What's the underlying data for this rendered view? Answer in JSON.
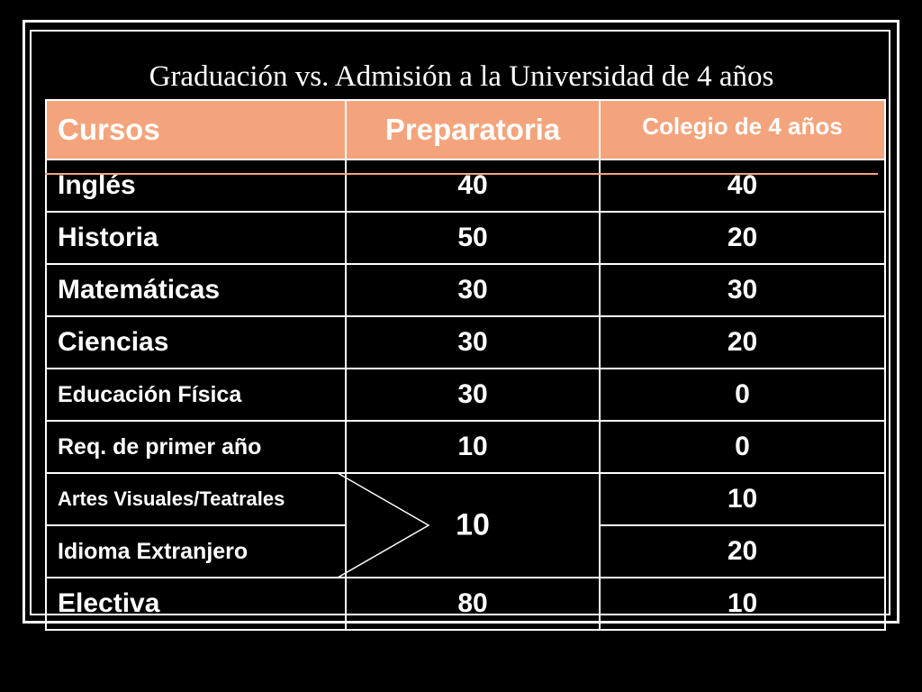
{
  "title": "Graduación vs. Admisión a la Universidad de 4 años",
  "colors": {
    "header_bg": "#f4a47c",
    "background": "#000000",
    "text": "#ffffff"
  },
  "table": {
    "headers": [
      "Cursos",
      "Preparatoria",
      "Colegio de 4 años"
    ],
    "rows": [
      {
        "course": "Inglés",
        "prep": "40",
        "college": "40"
      },
      {
        "course": "Historia",
        "prep": "50",
        "college": "20"
      },
      {
        "course": "Matemáticas",
        "prep": "30",
        "college": "30"
      },
      {
        "course": "Ciencias",
        "prep": "30",
        "college": "20"
      },
      {
        "course": "Educación Física",
        "prep": "30",
        "college": "0"
      },
      {
        "course": "Req. de primer año",
        "prep": "10",
        "college": "0"
      },
      {
        "course": "Artes Visuales/Teatrales",
        "college": "10"
      },
      {
        "course": "Idioma Extranjero",
        "college": "20"
      },
      {
        "course": "Electiva",
        "prep": "80",
        "college": "10"
      }
    ],
    "merged_prep_value": "10"
  }
}
